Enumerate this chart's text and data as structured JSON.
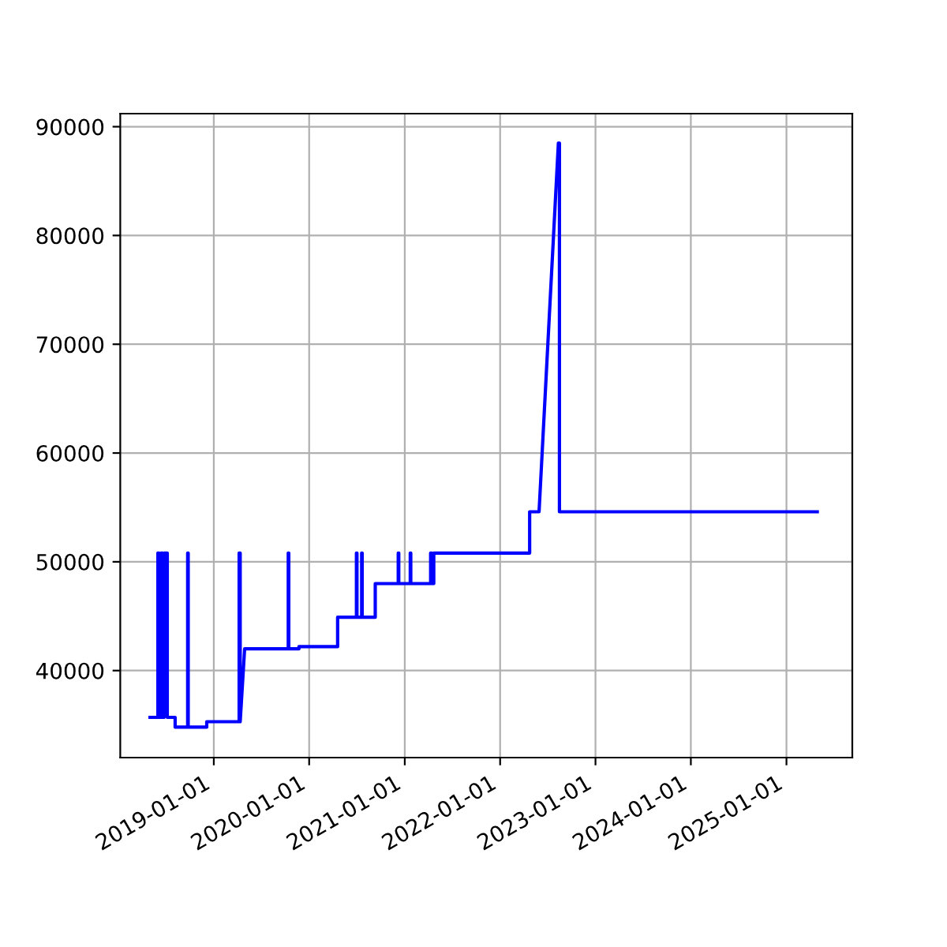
{
  "chart_data": {
    "type": "line",
    "x": [
      "2018-05-02",
      "2018-06-01",
      "2018-06-01",
      "2018-06-05",
      "2018-06-05",
      "2018-06-13",
      "2018-06-13",
      "2018-06-19",
      "2018-06-19",
      "2018-06-25",
      "2018-06-25",
      "2018-07-07",
      "2018-07-07",
      "2018-08-06",
      "2018-08-06",
      "2018-09-23",
      "2018-09-23",
      "2018-09-25",
      "2018-09-25",
      "2018-12-05",
      "2018-12-05",
      "2019-04-08",
      "2019-04-08",
      "2019-04-12",
      "2019-04-12",
      "2019-04-29",
      "2019-10-13",
      "2019-10-13",
      "2019-10-15",
      "2019-10-15",
      "2019-11-23",
      "2019-11-23",
      "2020-04-19",
      "2020-04-19",
      "2020-06-30",
      "2020-06-30",
      "2020-07-02",
      "2020-07-02",
      "2020-07-20",
      "2020-07-20",
      "2020-07-22",
      "2020-07-22",
      "2020-09-10",
      "2020-09-10",
      "2020-12-07",
      "2020-12-07",
      "2020-12-09",
      "2020-12-09",
      "2021-01-22",
      "2021-01-22",
      "2021-01-24",
      "2021-01-24",
      "2021-04-10",
      "2021-04-10",
      "2021-04-14",
      "2021-04-14",
      "2021-04-22",
      "2021-04-22",
      "2022-04-24",
      "2022-04-24",
      "2022-05-30",
      "2022-08-12",
      "2022-08-16",
      "2022-08-16",
      "2025-04-29"
    ],
    "series": [
      {
        "color": "#0000ff",
        "values": [
          35700,
          35700,
          50800,
          50800,
          35700,
          35700,
          50800,
          50800,
          35700,
          35700,
          50800,
          50800,
          35700,
          35700,
          34800,
          34800,
          50800,
          50800,
          34800,
          34800,
          35300,
          35300,
          50800,
          50800,
          35300,
          42000,
          42000,
          50800,
          50800,
          42000,
          42000,
          42200,
          42200,
          44900,
          44900,
          50800,
          50800,
          44900,
          44900,
          50800,
          50800,
          44900,
          44900,
          48000,
          48000,
          50800,
          50800,
          48000,
          48000,
          50800,
          50800,
          48000,
          48000,
          50800,
          50800,
          48000,
          48000,
          50800,
          50800,
          54600,
          54600,
          88500,
          88500,
          54600,
          54600
        ]
      }
    ],
    "xlim": [
      "2018-01-08",
      "2025-09-10"
    ],
    "xticks": [
      "2019-01-01",
      "2020-01-01",
      "2021-01-01",
      "2022-01-01",
      "2023-01-01",
      "2024-01-01",
      "2025-01-01"
    ],
    "ylim": [
      32000,
      91200
    ],
    "yticks": [
      40000,
      50000,
      60000,
      70000,
      80000,
      90000
    ],
    "grid": true
  }
}
